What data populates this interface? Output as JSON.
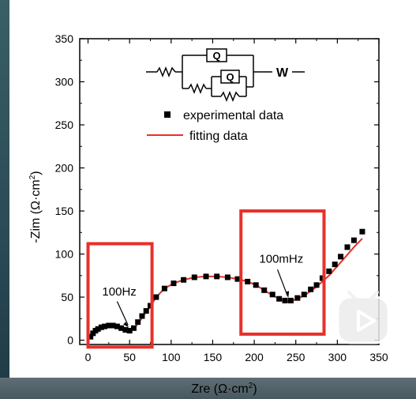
{
  "chart_data": {
    "type": "scatter",
    "xlabel": "Zre (Ω·cm",
    "xlabel_sup": "2",
    "xlabel_close": ")",
    "ylabel": "-Zim (Ω·cm",
    "ylabel_sup": "2",
    "ylabel_close": ")",
    "xlim": [
      -10,
      350
    ],
    "ylim": [
      -5,
      350
    ],
    "xticks": [
      0,
      50,
      100,
      150,
      200,
      250,
      300,
      350
    ],
    "yticks": [
      0,
      50,
      100,
      150,
      200,
      250,
      300,
      350
    ],
    "legend_position": "top-right",
    "series": [
      {
        "name": "experimental data",
        "marker": "square",
        "color": "#000000",
        "x": [
          3,
          6,
          9,
          12,
          16,
          20,
          25,
          30,
          35,
          40,
          45,
          50,
          55,
          60,
          65,
          70,
          75,
          82,
          92,
          103,
          115,
          128,
          142,
          155,
          168,
          180,
          192,
          202,
          212,
          222,
          230,
          237,
          244,
          252,
          260,
          268,
          275,
          282,
          290,
          297,
          304,
          312,
          320,
          330
        ],
        "y": [
          4,
          8,
          11,
          13,
          15,
          16,
          17,
          17,
          16,
          14,
          12,
          11,
          14,
          21,
          28,
          34,
          40,
          50,
          60,
          66,
          70,
          73,
          74,
          74,
          73,
          71,
          68,
          64,
          58,
          53,
          48,
          46,
          46,
          49,
          53,
          59,
          64,
          72,
          80,
          88,
          97,
          108,
          116,
          126
        ]
      },
      {
        "name": "fitting data",
        "marker": "line",
        "color": "#e8302a",
        "x": [
          0,
          5,
          10,
          15,
          20,
          25,
          30,
          35,
          40,
          45,
          50,
          55,
          60,
          65,
          70,
          75,
          82,
          92,
          103,
          115,
          128,
          142,
          155,
          168,
          180,
          192,
          202,
          212,
          222,
          230,
          237,
          244,
          252,
          260,
          268,
          275,
          282,
          290,
          300,
          310,
          320,
          330
        ],
        "y": [
          0,
          6,
          10,
          13,
          15,
          16,
          16,
          15,
          14,
          12,
          11,
          13,
          19,
          26,
          33,
          39,
          50,
          60,
          66,
          70,
          73,
          74,
          74,
          73,
          71,
          68,
          64,
          58,
          52,
          48,
          45,
          45,
          48,
          52,
          57,
          62,
          68,
          75,
          86,
          97,
          108,
          118
        ]
      }
    ],
    "annotations": [
      {
        "text": "100Hz",
        "x": 50,
        "y": 12
      },
      {
        "text": "100mHz",
        "x": 240,
        "y": 46
      }
    ],
    "highlight_boxes": [
      {
        "x0": 0,
        "x1": 77,
        "y0": -8,
        "y1": 112
      },
      {
        "x0": 184,
        "x1": 284,
        "y0": 7,
        "y1": 150
      }
    ],
    "circuit": {
      "element_q": "Q",
      "element_w": "W"
    },
    "colors": {
      "axis": "#000000",
      "highlight": "#e8302a",
      "fit": "#e8302a"
    }
  }
}
